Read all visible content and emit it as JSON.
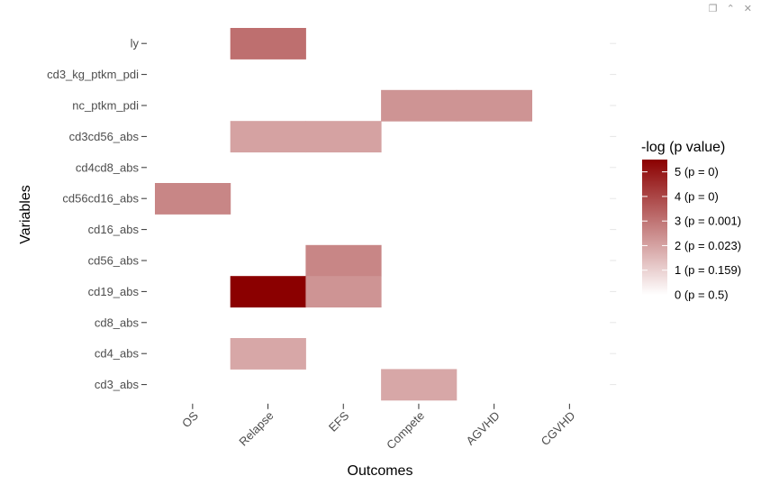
{
  "toolbar": {
    "icons": [
      "copy-icon",
      "collapse-up-icon",
      "close-icon"
    ]
  },
  "chart_data": {
    "type": "heatmap",
    "title": "",
    "xlabel": "Outcomes",
    "ylabel": "Variables",
    "x_categories": [
      "OS",
      "Relapse",
      "EFS",
      "Compete",
      "AGVHD",
      "CGVHD"
    ],
    "y_categories": [
      "ly",
      "cd3_kg_ptkm_pdi",
      "nc_ptkm_pdi",
      "cd3cd56_abs",
      "cd4cd8_abs",
      "cd56cd16_abs",
      "cd16_abs",
      "cd56_abs",
      "cd19_abs",
      "cd8_abs",
      "cd4_abs",
      "cd3_abs"
    ],
    "cells": [
      {
        "x": "Relapse",
        "y": "ly",
        "value": 3.1
      },
      {
        "x": "Compete",
        "y": "nc_ptkm_pdi",
        "value": 2.3
      },
      {
        "x": "AGVHD",
        "y": "nc_ptkm_pdi",
        "value": 2.3
      },
      {
        "x": "Relapse",
        "y": "cd3cd56_abs",
        "value": 2.0
      },
      {
        "x": "EFS",
        "y": "cd3cd56_abs",
        "value": 2.0
      },
      {
        "x": "OS",
        "y": "cd56cd16_abs",
        "value": 2.6
      },
      {
        "x": "EFS",
        "y": "cd56_abs",
        "value": 2.6
      },
      {
        "x": "Relapse",
        "y": "cd19_abs",
        "value": 5.5
      },
      {
        "x": "EFS",
        "y": "cd19_abs",
        "value": 2.3
      },
      {
        "x": "Relapse",
        "y": "cd4_abs",
        "value": 1.9
      },
      {
        "x": "Compete",
        "y": "cd3_abs",
        "value": 1.9
      }
    ],
    "color_scale": {
      "low": "#ffffff",
      "high": "#8b0000",
      "min": 0,
      "max": 5.5
    },
    "legend": {
      "title": "-log (p value)",
      "position": "right",
      "entries": [
        {
          "value": 5,
          "label": "5 (p = 0)"
        },
        {
          "value": 4,
          "label": "4 (p = 0)"
        },
        {
          "value": 3,
          "label": "3 (p = 0.001)"
        },
        {
          "value": 2,
          "label": "2 (p = 0.023)"
        },
        {
          "value": 1,
          "label": "1 (p = 0.159)"
        },
        {
          "value": 0,
          "label": "0 (p = 0.5)"
        }
      ]
    }
  }
}
